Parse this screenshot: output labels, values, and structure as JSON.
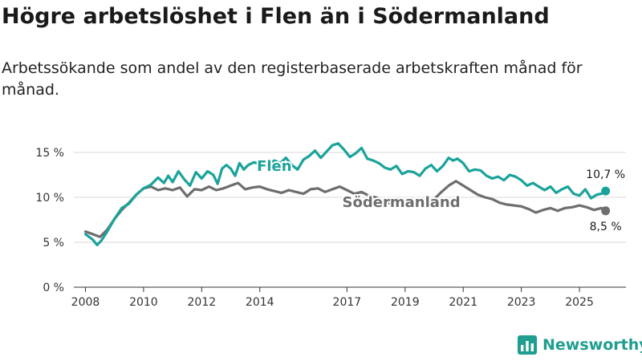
{
  "title": "Högre arbetslöshet i Flen än i Södermanland",
  "subtitle": "Arbetssökande som andel av den registerbaserade arbetskraften månad för månad.",
  "brand": "Newsworthy",
  "colors": {
    "flen": "#1aa39a",
    "sodermanland": "#6e6e6e",
    "grid": "#d9d9d9",
    "brand": "#1f9e8f"
  },
  "chart_data": {
    "type": "line",
    "title": "Högre arbetslöshet i Flen än i Södermanland",
    "xlabel": "",
    "ylabel": "",
    "xlim": [
      2007.6,
      2026.6
    ],
    "ylim": [
      0,
      15
    ],
    "x_ticks": [
      2008,
      2010,
      2012,
      2014,
      2017,
      2019,
      2021,
      2023,
      2025
    ],
    "x_tick_labels": [
      "2008",
      "2010",
      "2012",
      "2014",
      "2017",
      "2019",
      "2021",
      "2023",
      "2025"
    ],
    "y_ticks": [
      0,
      5,
      10,
      15
    ],
    "y_tick_labels": [
      "0 %",
      "5 %",
      "10 %",
      "15 %"
    ],
    "series": [
      {
        "name": "Flen",
        "label": "Flen",
        "color": "#1aa39a",
        "end_label": "10,7 %",
        "x": [
          2008.0,
          2008.25,
          2008.4,
          2008.55,
          2008.75,
          2009.0,
          2009.25,
          2009.5,
          2009.75,
          2010.0,
          2010.25,
          2010.5,
          2010.7,
          2010.85,
          2011.0,
          2011.2,
          2011.4,
          2011.6,
          2011.8,
          2012.0,
          2012.2,
          2012.4,
          2012.55,
          2012.7,
          2012.85,
          2013.0,
          2013.15,
          2013.3,
          2013.45,
          2013.6,
          2013.8,
          2014.0,
          2014.25,
          2014.5,
          2014.7,
          2014.9,
          2015.1,
          2015.3,
          2015.5,
          2015.7,
          2015.9,
          2016.1,
          2016.3,
          2016.5,
          2016.7,
          2016.9,
          2017.1,
          2017.3,
          2017.5,
          2017.7,
          2017.9,
          2018.1,
          2018.3,
          2018.5,
          2018.7,
          2018.9,
          2019.1,
          2019.3,
          2019.5,
          2019.7,
          2019.9,
          2020.1,
          2020.3,
          2020.5,
          2020.65,
          2020.8,
          2021.0,
          2021.2,
          2021.4,
          2021.6,
          2021.8,
          2022.0,
          2022.2,
          2022.4,
          2022.6,
          2022.8,
          2023.0,
          2023.2,
          2023.4,
          2023.6,
          2023.8,
          2024.0,
          2024.2,
          2024.4,
          2024.6,
          2024.8,
          2025.0,
          2025.2,
          2025.4,
          2025.6,
          2025.75,
          2025.9
        ],
        "y": [
          5.9,
          5.3,
          4.7,
          5.2,
          6.2,
          7.6,
          8.8,
          9.3,
          10.3,
          11.0,
          11.4,
          12.2,
          11.6,
          12.4,
          11.7,
          12.9,
          12.0,
          11.3,
          12.8,
          12.1,
          12.9,
          12.5,
          11.5,
          13.2,
          13.6,
          13.2,
          12.4,
          13.8,
          13.1,
          13.6,
          13.9,
          13.7,
          13.4,
          14.1,
          13.8,
          14.4,
          13.6,
          13.1,
          14.2,
          14.6,
          15.2,
          14.4,
          15.1,
          15.8,
          16.0,
          15.3,
          14.5,
          14.9,
          15.5,
          14.3,
          14.1,
          13.8,
          13.3,
          13.1,
          13.5,
          12.6,
          12.9,
          12.8,
          12.4,
          13.2,
          13.6,
          12.9,
          13.5,
          14.4,
          14.1,
          14.3,
          13.8,
          12.9,
          13.1,
          13.0,
          12.4,
          12.1,
          12.3,
          11.9,
          12.5,
          12.3,
          11.9,
          11.3,
          11.6,
          11.2,
          10.8,
          11.2,
          10.5,
          10.9,
          11.2,
          10.4,
          10.2,
          10.9,
          9.9,
          10.3,
          10.4,
          10.7
        ]
      },
      {
        "name": "Södermanland",
        "label": "Södermanland",
        "color": "#6e6e6e",
        "end_label": "8,5 %",
        "x": [
          2008.0,
          2008.25,
          2008.5,
          2008.75,
          2009.0,
          2009.25,
          2009.5,
          2009.75,
          2010.0,
          2010.25,
          2010.5,
          2010.75,
          2011.0,
          2011.25,
          2011.5,
          2011.75,
          2012.0,
          2012.25,
          2012.5,
          2012.75,
          2013.0,
          2013.25,
          2013.5,
          2013.75,
          2014.0,
          2014.25,
          2014.5,
          2014.75,
          2015.0,
          2015.25,
          2015.5,
          2015.75,
          2016.0,
          2016.25,
          2016.5,
          2016.75,
          2017.0,
          2017.25,
          2017.5,
          2017.75,
          2018.0,
          2018.25,
          2018.5,
          2018.75,
          2019.0,
          2019.25,
          2019.5,
          2019.75,
          2020.0,
          2020.25,
          2020.5,
          2020.75,
          2021.0,
          2021.25,
          2021.5,
          2021.75,
          2022.0,
          2022.25,
          2022.5,
          2022.75,
          2023.0,
          2023.25,
          2023.5,
          2023.75,
          2024.0,
          2024.25,
          2024.5,
          2024.75,
          2025.0,
          2025.25,
          2025.5,
          2025.75,
          2025.9
        ],
        "y": [
          6.2,
          5.9,
          5.6,
          6.4,
          7.6,
          8.6,
          9.4,
          10.3,
          11.0,
          11.2,
          10.8,
          11.0,
          10.8,
          11.1,
          10.1,
          10.9,
          10.8,
          11.2,
          10.8,
          11.0,
          11.3,
          11.6,
          10.9,
          11.1,
          11.2,
          10.9,
          10.7,
          10.5,
          10.8,
          10.6,
          10.4,
          10.9,
          11.0,
          10.6,
          10.9,
          11.2,
          10.8,
          10.4,
          10.6,
          10.2,
          10.0,
          9.6,
          9.3,
          9.1,
          9.2,
          9.1,
          8.9,
          9.0,
          9.8,
          10.6,
          11.3,
          11.8,
          11.3,
          10.8,
          10.3,
          10.0,
          9.8,
          9.4,
          9.2,
          9.1,
          9.0,
          8.7,
          8.3,
          8.6,
          8.8,
          8.5,
          8.8,
          8.9,
          9.1,
          8.9,
          8.6,
          8.8,
          8.5
        ]
      }
    ]
  }
}
